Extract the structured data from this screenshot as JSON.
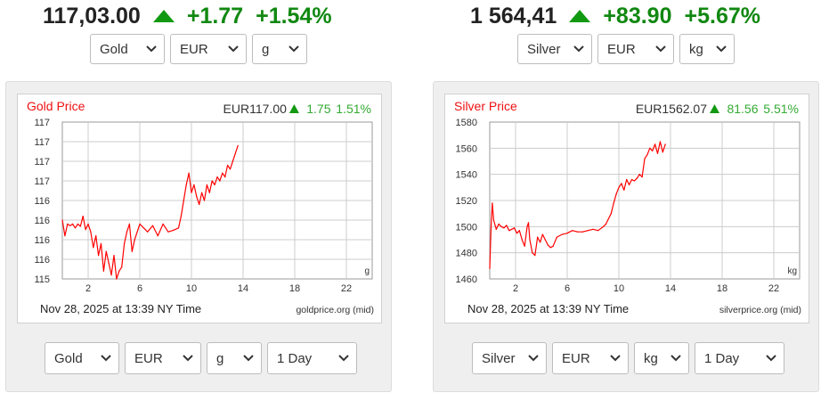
{
  "gold_ticker": {
    "price": "117,03.00",
    "change": "+1.77",
    "pct": "+1.54%"
  },
  "silver_ticker": {
    "price": "1 564,41",
    "change": "+83.90",
    "pct": "+5.67%"
  },
  "gold_top_selects": {
    "metal": "Gold",
    "currency": "EUR",
    "unit": "g"
  },
  "silver_top_selects": {
    "metal": "Silver",
    "currency": "EUR",
    "unit": "kg"
  },
  "gold_bottom_selects": {
    "metal": "Gold",
    "currency": "EUR",
    "unit": "g",
    "range": "1 Day"
  },
  "silver_bottom_selects": {
    "metal": "Silver",
    "currency": "EUR",
    "unit": "kg",
    "range": "1 Day"
  },
  "colors": {
    "up_green": "#119911",
    "pct_green": "#33aa33",
    "title_red": "#ee1111",
    "line_red": "#ff0000",
    "grid": "#cccccc",
    "panel_bg": "#efefef"
  },
  "icons": {
    "up": "up-triangle-icon",
    "dropdown": "chevron-down-icon"
  },
  "chart_data": [
    {
      "type": "line",
      "title": "Gold Price",
      "header_price": "EUR117.00",
      "header_change": "1.75",
      "header_pct": "1.51%",
      "unit_label": "g",
      "footer_date": "Nov 28, 2025 at 13:39 NY Time",
      "footer_source": "goldprice.org (mid)",
      "xlim": [
        0,
        24
      ],
      "x_ticks": [
        2,
        6,
        10,
        14,
        18,
        22
      ],
      "ylim": [
        115.25,
        117.25
      ],
      "y_ticks": [
        115.25,
        115.5,
        115.75,
        116.0,
        116.25,
        116.5,
        116.75,
        117.0,
        117.25
      ],
      "y_tick_labels": [
        "115",
        "116",
        "116",
        "116",
        "116",
        "117",
        "117",
        "117",
        "117"
      ],
      "grid": true,
      "series": [
        {
          "x": [
            0.0,
            0.2,
            0.4,
            0.6,
            0.8,
            1.0,
            1.2,
            1.4,
            1.6,
            1.8,
            2.0,
            2.2,
            2.4,
            2.6,
            2.8,
            3.0,
            3.2,
            3.4,
            3.6,
            3.8,
            4.0,
            4.2,
            4.4,
            4.6,
            4.8,
            5.0,
            5.2,
            5.4,
            5.6,
            5.8,
            6.0,
            6.3,
            6.6,
            7.0,
            7.4,
            7.8,
            8.2,
            8.6,
            9.0,
            9.2,
            9.4,
            9.6,
            9.8,
            10.0,
            10.2,
            10.4,
            10.6,
            10.8,
            11.0,
            11.2,
            11.4,
            11.6,
            11.8,
            12.0,
            12.2,
            12.4,
            12.6,
            12.8,
            13.0,
            13.2,
            13.4,
            13.6
          ],
          "values": [
            116.0,
            115.8,
            115.95,
            115.93,
            115.95,
            115.9,
            115.95,
            115.92,
            116.05,
            115.88,
            115.95,
            115.85,
            115.65,
            115.8,
            115.55,
            115.7,
            115.35,
            115.6,
            115.45,
            115.3,
            115.55,
            115.25,
            115.35,
            115.4,
            115.7,
            115.85,
            115.95,
            115.6,
            115.75,
            115.85,
            115.95,
            115.9,
            115.85,
            115.93,
            115.8,
            115.95,
            115.85,
            115.87,
            115.9,
            116.05,
            116.25,
            116.45,
            116.6,
            116.35,
            116.45,
            116.3,
            116.2,
            116.35,
            116.25,
            116.45,
            116.35,
            116.5,
            116.45,
            116.55,
            116.5,
            116.6,
            116.55,
            116.7,
            116.65,
            116.75,
            116.85,
            116.95
          ]
        }
      ]
    },
    {
      "type": "line",
      "title": "Silver Price",
      "header_price": "EUR1562.07",
      "header_change": "81.56",
      "header_pct": "5.51%",
      "unit_label": "kg",
      "footer_date": "Nov 28, 2025 at 13:39 NY Time",
      "footer_source": "silverprice.org (mid)",
      "xlim": [
        0,
        24
      ],
      "x_ticks": [
        2,
        6,
        10,
        14,
        18,
        22
      ],
      "ylim": [
        1460,
        1580
      ],
      "y_ticks": [
        1460,
        1480,
        1500,
        1520,
        1540,
        1560,
        1580
      ],
      "y_tick_labels": [
        "1460",
        "1480",
        "1500",
        "1520",
        "1540",
        "1560",
        "1580"
      ],
      "grid": true,
      "series": [
        {
          "x": [
            0.0,
            0.1,
            0.2,
            0.3,
            0.5,
            0.7,
            0.9,
            1.1,
            1.3,
            1.5,
            1.7,
            1.9,
            2.1,
            2.3,
            2.5,
            2.7,
            2.9,
            3.0,
            3.1,
            3.3,
            3.5,
            3.7,
            3.9,
            4.1,
            4.3,
            4.5,
            4.7,
            4.9,
            5.2,
            5.6,
            6.0,
            6.4,
            6.8,
            7.2,
            7.6,
            8.0,
            8.4,
            8.8,
            9.0,
            9.2,
            9.4,
            9.6,
            9.8,
            10.0,
            10.2,
            10.4,
            10.6,
            10.8,
            11.0,
            11.2,
            11.4,
            11.6,
            11.8,
            12.0,
            12.2,
            12.4,
            12.6,
            12.8,
            13.0,
            13.2,
            13.4,
            13.6
          ],
          "values": [
            1468,
            1500,
            1518,
            1505,
            1498,
            1502,
            1500,
            1499,
            1501,
            1497,
            1498,
            1499,
            1495,
            1497,
            1490,
            1485,
            1500,
            1503,
            1490,
            1480,
            1478,
            1492,
            1488,
            1494,
            1490,
            1486,
            1484,
            1485,
            1492,
            1494,
            1495,
            1497,
            1496,
            1496,
            1497,
            1498,
            1497,
            1500,
            1502,
            1506,
            1510,
            1518,
            1525,
            1530,
            1533,
            1528,
            1536,
            1532,
            1536,
            1535,
            1537,
            1540,
            1538,
            1552,
            1555,
            1560,
            1558,
            1563,
            1556,
            1565,
            1557,
            1563
          ]
        }
      ]
    }
  ]
}
